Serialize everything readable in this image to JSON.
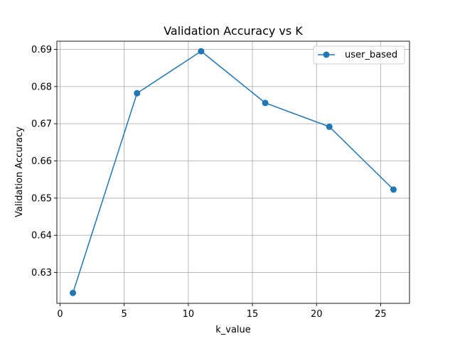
{
  "chart_data": {
    "type": "line",
    "title": "Validation Accuracy vs K",
    "xlabel": "k_value",
    "ylabel": "Validation Accuracy",
    "xlim": [
      -0.25,
      27.25
    ],
    "ylim": [
      0.6217,
      0.6922
    ],
    "xticks": [
      0,
      5,
      10,
      15,
      20,
      25
    ],
    "yticks": [
      0.63,
      0.64,
      0.65,
      0.66,
      0.67,
      0.68,
      0.69
    ],
    "grid": true,
    "legend_position": "top-right",
    "series": [
      {
        "name": "user_based",
        "color": "#1f77b4",
        "marker": "circle",
        "x": [
          1,
          6,
          11,
          16,
          21,
          26
        ],
        "y": [
          0.6245,
          0.6782,
          0.6895,
          0.6756,
          0.6692,
          0.6523
        ]
      }
    ]
  }
}
